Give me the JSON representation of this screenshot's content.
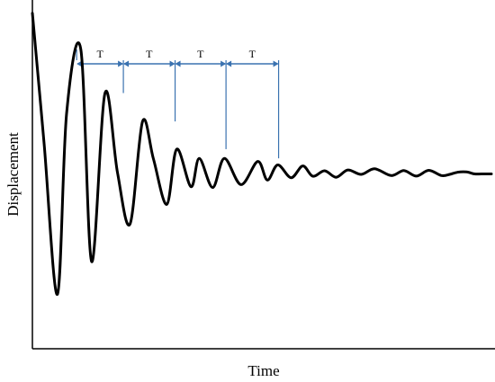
{
  "chart_data": {
    "type": "line",
    "title": "",
    "xlabel": "Time",
    "ylabel": "Displacement",
    "xlim": [
      0,
      1
    ],
    "ylim": [
      -1,
      1
    ],
    "grid": false,
    "legend": "none",
    "series": [
      {
        "color": "#000000",
        "x": [
          0.0,
          0.0255,
          0.0545,
          0.0745,
          0.1054,
          0.1291,
          0.1582,
          0.1854,
          0.2127,
          0.24,
          0.2636,
          0.2927,
          0.3145,
          0.3454,
          0.3636,
          0.3927,
          0.4182,
          0.4545,
          0.4909,
          0.5118,
          0.5345,
          0.5636,
          0.589,
          0.6109,
          0.6364,
          0.6618,
          0.6873,
          0.7164,
          0.7454,
          0.7818,
          0.8091,
          0.8364,
          0.8636,
          0.8909,
          0.9091,
          0.9255,
          0.9454,
          0.9636,
          0.9782,
          1.0
        ],
        "y": [
          0.979,
          0.186,
          -0.734,
          0.369,
          0.759,
          -0.534,
          0.493,
          0.006,
          -0.305,
          0.32,
          0.093,
          -0.186,
          0.151,
          -0.078,
          0.094,
          -0.083,
          0.095,
          -0.065,
          0.076,
          -0.037,
          0.055,
          -0.023,
          0.049,
          -0.014,
          0.019,
          -0.02,
          0.024,
          -0.003,
          0.032,
          -0.01,
          0.02,
          -0.013,
          0.022,
          -0.01,
          -0.003,
          0.01,
          0.012,
          0.0,
          0.0,
          0.0
        ]
      }
    ],
    "annotations": [
      {
        "label": "T",
        "x_start": 0.0964,
        "x_end": 0.1982,
        "peak_index": 0
      },
      {
        "label": "T",
        "x_start": 0.1982,
        "x_end": 0.3109,
        "peak_index": 1
      },
      {
        "label": "T",
        "x_start": 0.3109,
        "x_end": 0.4218,
        "peak_index": 2
      },
      {
        "label": "T",
        "x_start": 0.4218,
        "x_end": 0.5364,
        "peak_index": 3
      }
    ],
    "peaks": [
      {
        "x": 0.0964,
        "y": 0.759
      },
      {
        "x": 0.1982,
        "y": 0.493
      },
      {
        "x": 0.3109,
        "y": 0.32
      },
      {
        "x": 0.4218,
        "y": 0.151
      },
      {
        "x": 0.5364,
        "y": 0.095
      }
    ],
    "colors": {
      "curve": "#000000",
      "period_marker": "#3a72b0",
      "axis": "#000000"
    }
  }
}
